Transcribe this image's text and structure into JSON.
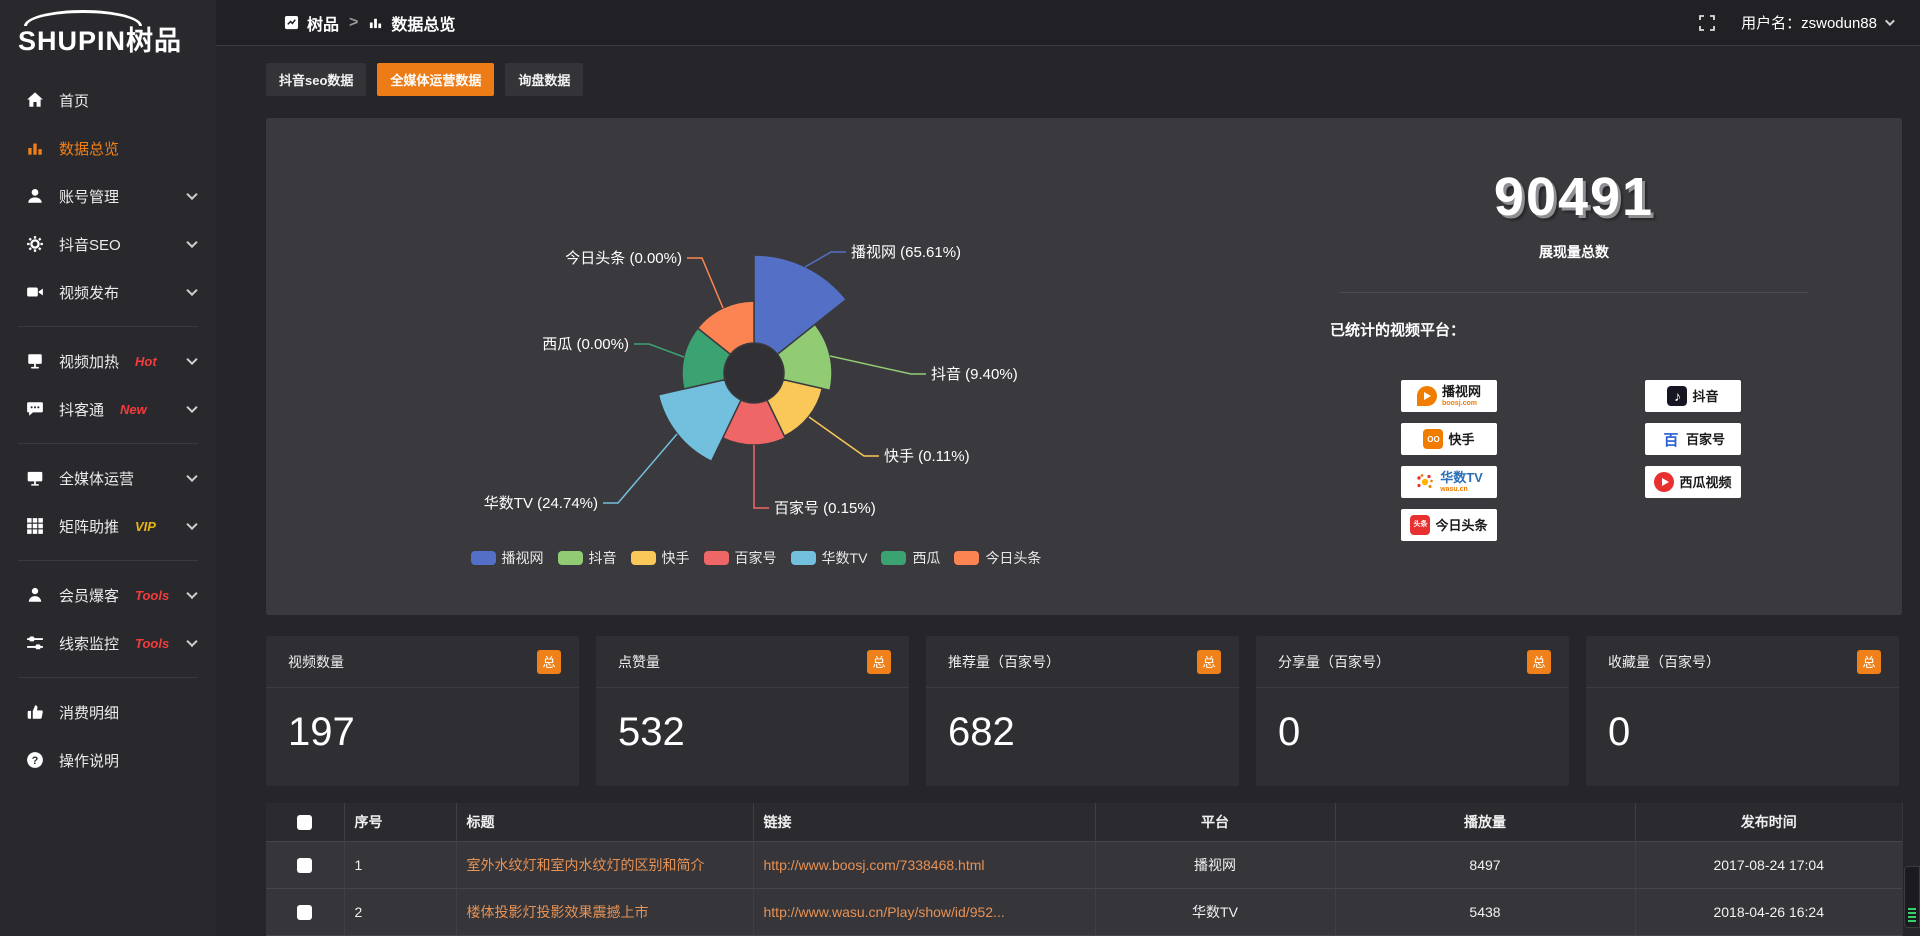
{
  "topbar": {
    "brand": "SHUPIN树品",
    "breadcrumb": {
      "root": "树品",
      "separator": ">",
      "current": "数据总览"
    },
    "username": "用户名：zswodun88"
  },
  "sidebar": {
    "items": [
      {
        "id": "home",
        "label": "首页",
        "icon": "home-icon"
      },
      {
        "id": "data-overview",
        "label": "数据总览",
        "icon": "bar-chart-icon",
        "active": true
      },
      {
        "id": "account-manage",
        "label": "账号管理",
        "icon": "user-icon",
        "chevron": true
      },
      {
        "id": "douyin-seo",
        "label": "抖音SEO",
        "icon": "gear-icon",
        "chevron": true
      },
      {
        "id": "video-publish",
        "label": "视频发布",
        "icon": "video-icon",
        "chevron": true,
        "divider_after": true
      },
      {
        "id": "video-heat",
        "label": "视频加热",
        "icon": "screen-icon",
        "badge": "Hot",
        "badge_color": "#f23c3c",
        "chevron": true
      },
      {
        "id": "douketong",
        "label": "抖客通",
        "icon": "chat-icon",
        "badge": "New",
        "badge_color": "#f23c3c",
        "chevron": true,
        "divider_after": true
      },
      {
        "id": "omni-media",
        "label": "全媒体运营",
        "icon": "monitor-icon",
        "chevron": true
      },
      {
        "id": "matrix-boost",
        "label": "矩阵助推",
        "icon": "grid-icon",
        "badge": "VIP",
        "badge_color": "#e7b416",
        "chevron": true,
        "divider_after": true
      },
      {
        "id": "member-baoke",
        "label": "会员爆客",
        "icon": "person-icon",
        "badge": "Tools",
        "badge_color": "#f23c3c",
        "chevron": true
      },
      {
        "id": "clue-monitor",
        "label": "线索监控",
        "icon": "sliders-icon",
        "badge": "Tools",
        "badge_color": "#f23c3c",
        "chevron": true,
        "divider_after": true
      },
      {
        "id": "consume-detail",
        "label": "消费明细",
        "icon": "wallet-icon"
      },
      {
        "id": "operate-guide",
        "label": "操作说明",
        "icon": "question-icon"
      }
    ]
  },
  "tabs": [
    {
      "id": "douyin-seo-data",
      "label": "抖音seo数据",
      "active": false
    },
    {
      "id": "omni-media-data",
      "label": "全媒体运营数据",
      "active": true
    },
    {
      "id": "inquiry-data",
      "label": "询盘数据",
      "active": false
    }
  ],
  "chart_data": {
    "type": "pie",
    "variant": "nightingale-rose",
    "equal_angles": true,
    "inner_radius_px": 30,
    "legend_position": "bottom",
    "slices": [
      {
        "name": "播视网",
        "pct": 65.61,
        "color": "#5470c6",
        "radius_px": 118
      },
      {
        "name": "抖音",
        "pct": 9.4,
        "color": "#91cc75",
        "radius_px": 78
      },
      {
        "name": "快手",
        "pct": 0.11,
        "color": "#fac858",
        "radius_px": 70
      },
      {
        "name": "百家号",
        "pct": 0.15,
        "color": "#ee6666",
        "radius_px": 72
      },
      {
        "name": "华数TV",
        "pct": 24.74,
        "color": "#73c0de",
        "radius_px": 98
      },
      {
        "name": "西瓜",
        "pct": 0.0,
        "color": "#3ba272",
        "radius_px": 72
      },
      {
        "name": "今日头条",
        "pct": 0.0,
        "color": "#fc8452",
        "radius_px": 72
      }
    ],
    "labels": [
      "播视网 (65.61%)",
      "抖音 (9.40%)",
      "快手 (0.11%)",
      "百家号 (0.15%)",
      "华数TV (24.74%)",
      "西瓜 (0.00%)",
      "今日头条 (0.00%)"
    ],
    "legend": [
      "播视网",
      "抖音",
      "快手",
      "百家号",
      "华数TV",
      "西瓜",
      "今日头条"
    ]
  },
  "overview": {
    "total_value": "90491",
    "total_label": "展现量总数",
    "platforms_label": "已统计的视频平台：",
    "platform_chips": [
      {
        "id": "boosj",
        "name": "播视网",
        "sub": "boosj.com",
        "col": 1
      },
      {
        "id": "kuaishou",
        "name": "快手",
        "sub": "",
        "col": 1
      },
      {
        "id": "wasu",
        "name": "华数TV",
        "sub": "wasu.cn",
        "col": 1
      },
      {
        "id": "toutiao",
        "name": "今日头条",
        "sub": "",
        "col": 1
      },
      {
        "id": "douyin",
        "name": "抖音",
        "sub": "",
        "col": 2
      },
      {
        "id": "baijiahao",
        "name": "百家号",
        "sub": "",
        "col": 2
      },
      {
        "id": "xigua",
        "name": "西瓜视频",
        "sub": "",
        "col": 2
      }
    ]
  },
  "stat_cards": [
    {
      "title": "视频数量",
      "badge": "总",
      "value": "197"
    },
    {
      "title": "点赞量",
      "badge": "总",
      "value": "532"
    },
    {
      "title": "推荐量（百家号）",
      "badge": "总",
      "value": "682"
    },
    {
      "title": "分享量（百家号）",
      "badge": "总",
      "value": "0"
    },
    {
      "title": "收藏量（百家号）",
      "badge": "总",
      "value": "0"
    }
  ],
  "table": {
    "headers": [
      "序号",
      "标题",
      "链接",
      "平台",
      "播放量",
      "发布时间"
    ],
    "rows": [
      {
        "no": "1",
        "title": "室外水纹灯和室内水纹灯的区别和简介",
        "link": "http://www.boosj.com/7338468.html",
        "platform": "播视网",
        "plays": "8497",
        "time": "2017-08-24 17:04"
      },
      {
        "no": "2",
        "title": "楼体投影灯投影效果震撼上市",
        "link": "http://www.wasu.cn/Play/show/id/952...",
        "platform": "华数TV",
        "plays": "5438",
        "time": "2018-04-26 16:24"
      }
    ]
  }
}
